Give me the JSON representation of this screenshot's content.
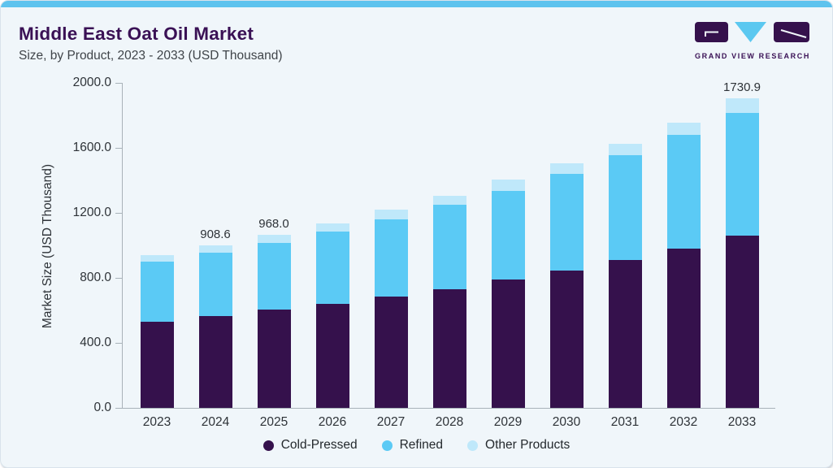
{
  "header": {
    "title": "Middle East Oat Oil Market",
    "subtitle": "Size, by Product, 2023 - 2033 (USD Thousand)",
    "logo_text": "GRAND VIEW RESEARCH"
  },
  "colors": {
    "accent_strip": "#5EC3EE",
    "card_background": "#F0F6FA",
    "card_border": "#D9E3EC",
    "title_text": "#3A1155",
    "axis_line": "#A9B2B9",
    "tick_text": "#2E3338",
    "cold_pressed": "#35114C",
    "refined": "#5BCAF5",
    "other_products": "#BFE8FA"
  },
  "chart_data": {
    "type": "bar",
    "stacked": true,
    "title": "Middle East Oat Oil Market",
    "subtitle": "Size, by Product, 2023 - 2033 (USD Thousand)",
    "xlabel": "",
    "ylabel": "Market Size (USD Thousand)",
    "ylim": [
      0,
      2000
    ],
    "ytick_labels": [
      "0.0",
      "400.0",
      "800.0",
      "1200.0",
      "1600.0",
      "2000.0"
    ],
    "grid": false,
    "legend_position": "bottom",
    "categories": [
      "2023",
      "2024",
      "2025",
      "2026",
      "2027",
      "2028",
      "2029",
      "2030",
      "2031",
      "2032",
      "2033"
    ],
    "series": [
      {
        "name": "Cold-Pressed",
        "color": "#35114C",
        "values": [
          483.2,
          515.0,
          548.1,
          581.7,
          620.7,
          664.7,
          717.8,
          767.7,
          824.9,
          888.4,
          964.2
        ]
      },
      {
        "name": "Refined",
        "color": "#5BCAF5",
        "values": [
          332.6,
          350.7,
          373.9,
          405.1,
          434.2,
          468.7,
          495.9,
          539.9,
          585.3,
          635.2,
          685.0
        ]
      },
      {
        "name": "Other Products",
        "color": "#BFE8FA",
        "values": [
          38.1,
          42.9,
          46.0,
          45.4,
          53.1,
          53.1,
          60.3,
          60.4,
          63.5,
          68.1,
          81.7
        ]
      }
    ],
    "totals": [
      853.9,
      908.6,
      968.0,
      1032.2,
      1108.0,
      1186.5,
      1274.0,
      1368.0,
      1473.7,
      1591.7,
      1730.9
    ],
    "bar_labels": {
      "2024": "908.6",
      "2025": "968.0",
      "2033": "1730.9"
    },
    "bar_scale_calibration": 1.102
  }
}
